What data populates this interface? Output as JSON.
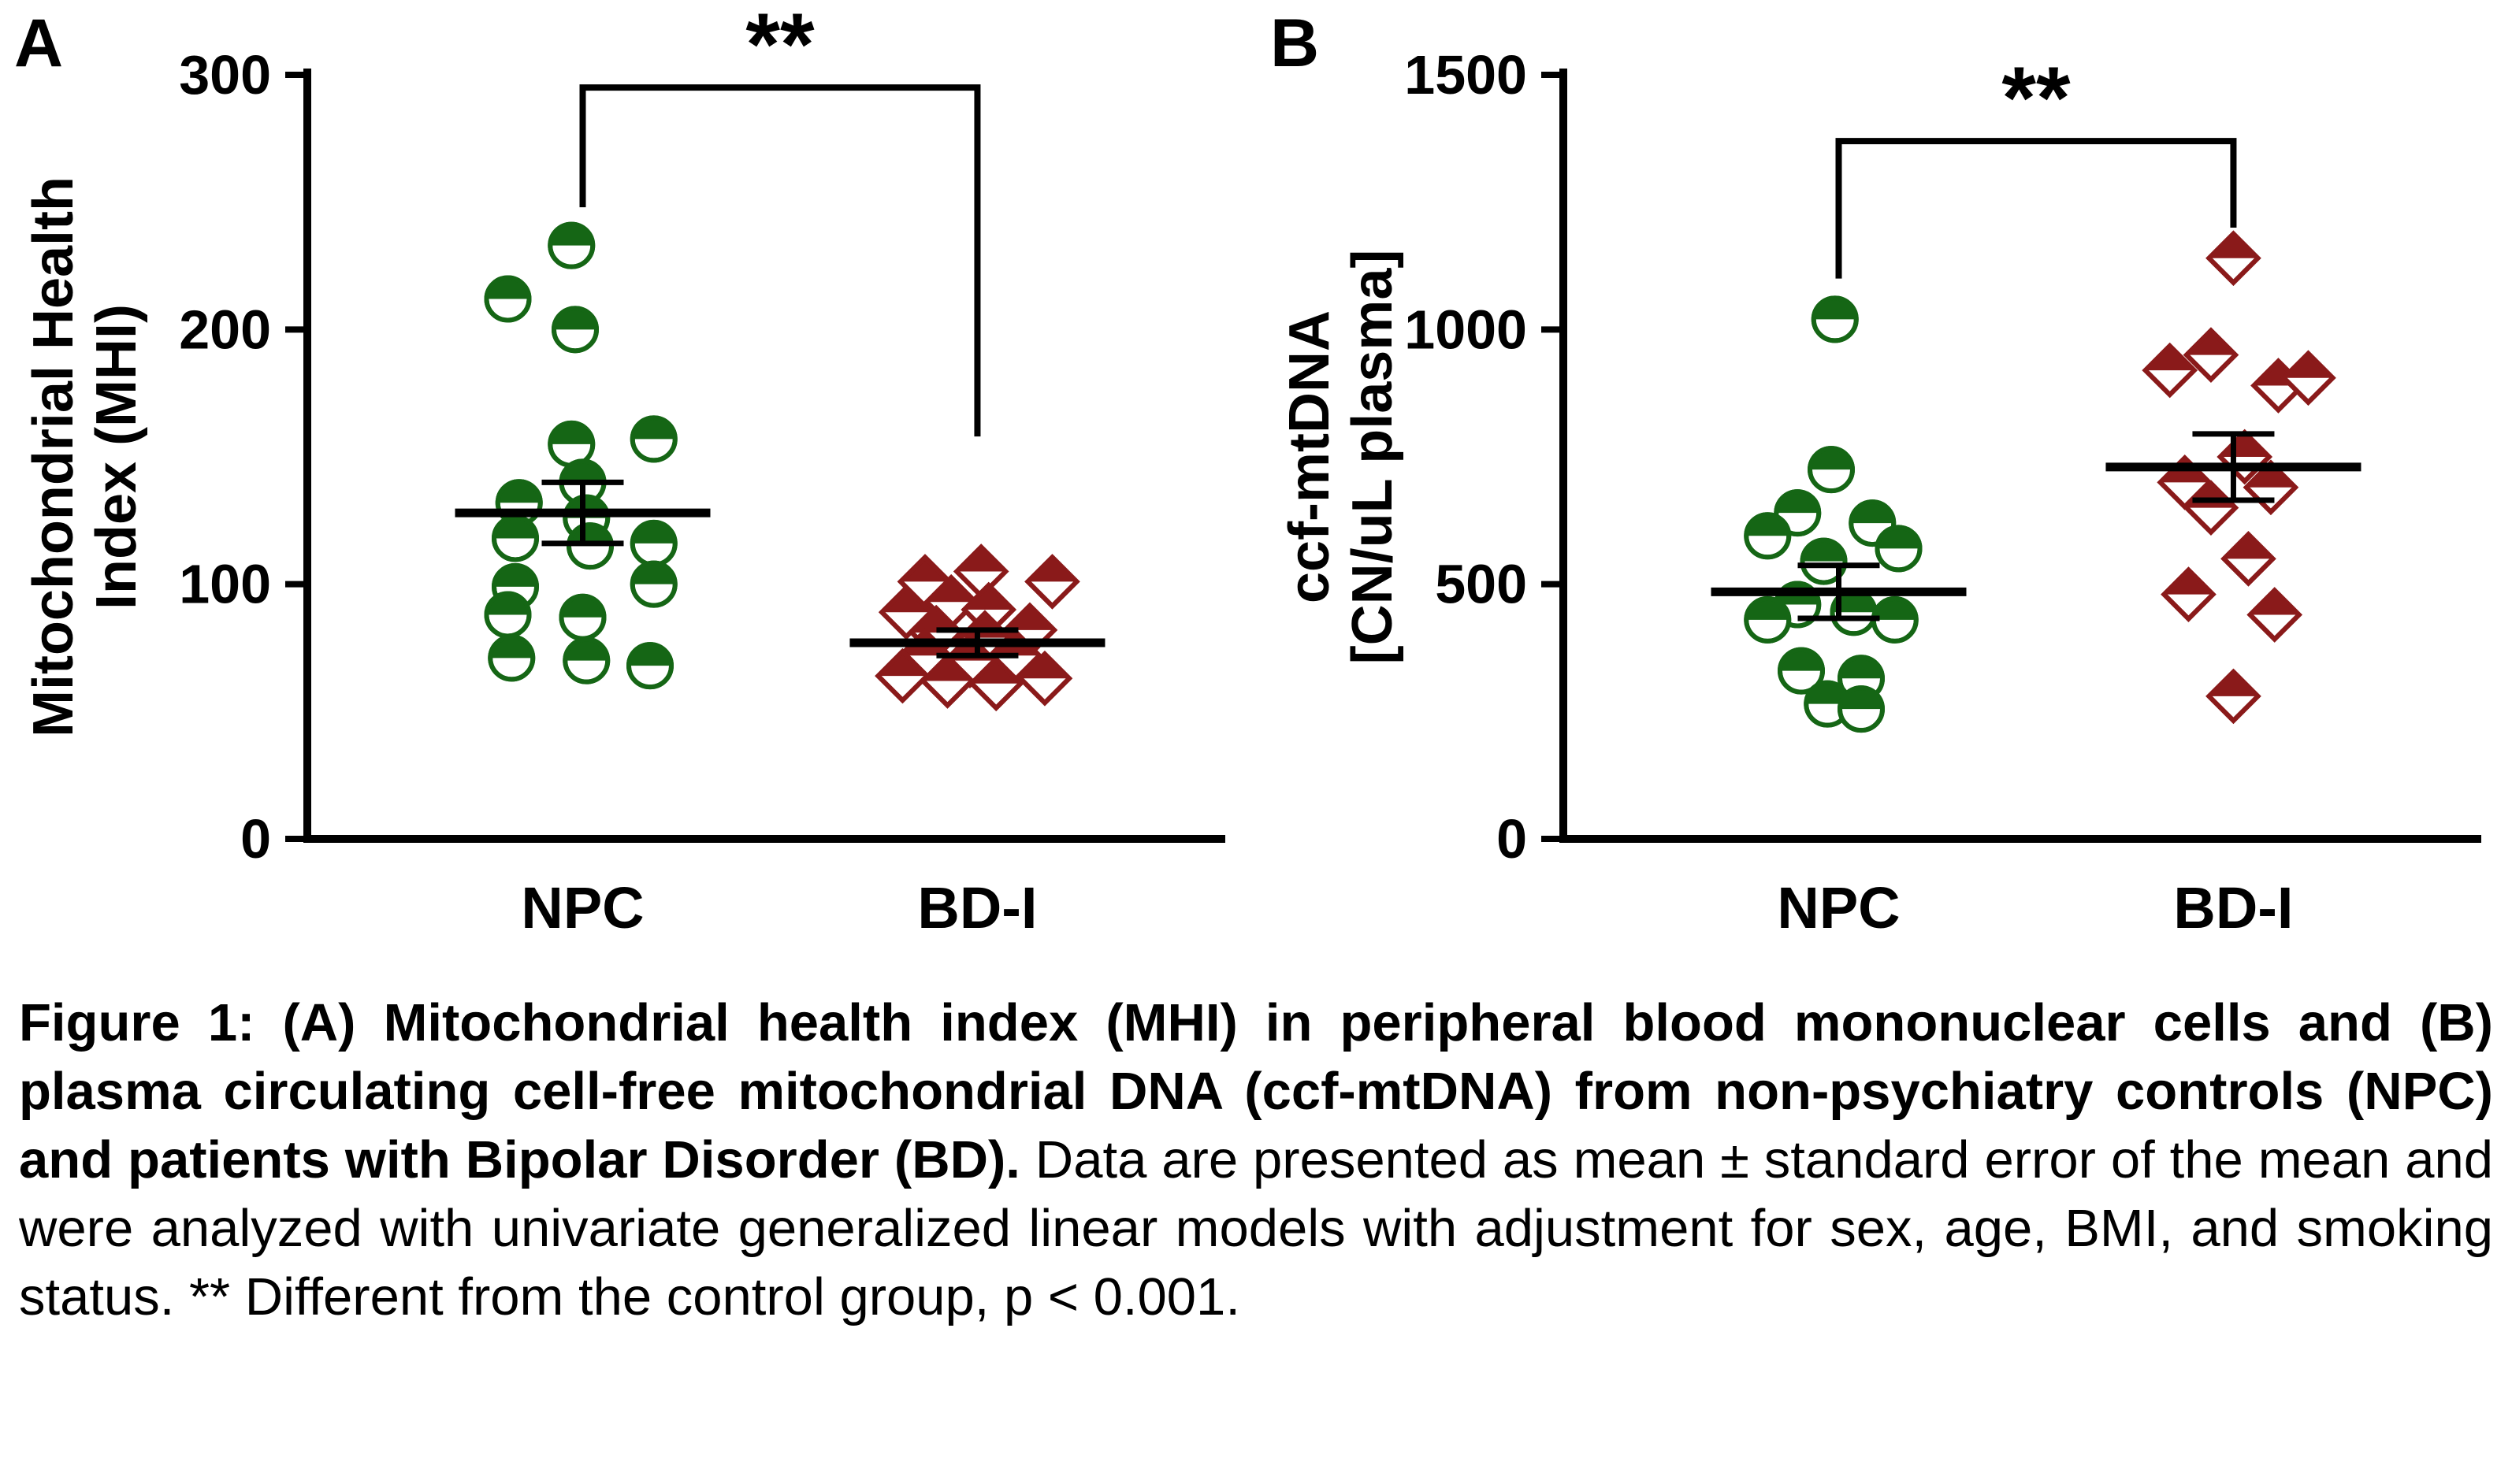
{
  "caption": {
    "bold": "Figure 1: (A) Mitochondrial health index (MHI) in peripheral blood mononuclear cells and (B) plasma circulating cell-free mitochondrial DNA (ccf-mtDNA) from non-psychiatry controls (NPC) and patients with Bipolar Disorder (BD).",
    "regular": " Data are presented as mean ± standard error of the mean and were analyzed with univariate generalized linear models with adjustment for sex, age, BMI, and smoking status. ** Different from the control group, p < 0.001."
  },
  "chart_data": [
    {
      "type": "scatter",
      "panel_label": "A",
      "ylabel": "Mitochondrial Health Index (MHI)",
      "ylabel_lines": [
        "Mitochondrial Health",
        "Index (MHI)"
      ],
      "ylim": [
        0,
        300
      ],
      "yticks": [
        0,
        100,
        200,
        300
      ],
      "categories": [
        "NPC",
        "BD-I"
      ],
      "series": [
        {
          "name": "NPC",
          "marker": "half-circle",
          "color": "#156615",
          "mean": 128,
          "sem": 12,
          "values": [
            212,
            233,
            200,
            155,
            157,
            140,
            132,
            126,
            118,
            115,
            116,
            100,
            99,
            88,
            87,
            71,
            70,
            68
          ],
          "jitter": [
            -1.0,
            -0.15,
            -0.1,
            -0.15,
            0.95,
            0.0,
            -0.85,
            0.05,
            -0.9,
            0.1,
            0.95,
            0.95,
            -0.9,
            -1.0,
            0.0,
            -0.95,
            0.05,
            0.9
          ]
        },
        {
          "name": "BD-I",
          "marker": "half-diamond",
          "color": "#8a1a1a",
          "mean": 77,
          "sem": 5,
          "values": [
            105,
            101,
            101,
            93,
            89,
            90,
            81,
            79,
            82,
            72,
            70,
            72,
            64,
            62,
            61,
            63
          ],
          "jitter": [
            0.05,
            -0.7,
            1.0,
            -0.35,
            -0.95,
            0.15,
            -0.55,
            0.1,
            0.7,
            -0.7,
            -0.1,
            0.5,
            -1.0,
            -0.4,
            0.25,
            0.9
          ]
        }
      ],
      "significance": {
        "label": "**",
        "y_top": 295,
        "left_drop_to": 248,
        "right_drop_to": 158
      }
    },
    {
      "type": "scatter",
      "panel_label": "B",
      "ylabel": "ccf-mtDNA [CN/uL plasma]",
      "ylabel_lines": [
        "ccf-mtDNA",
        "[CN/uL plasma]"
      ],
      "ylim": [
        0,
        1500
      ],
      "yticks": [
        0,
        500,
        1000,
        1500
      ],
      "categories": [
        "NPC",
        "BD-I"
      ],
      "series": [
        {
          "name": "NPC",
          "marker": "half-circle",
          "color": "#156615",
          "mean": 485,
          "sem": 52,
          "values": [
            1020,
            725,
            640,
            620,
            595,
            570,
            545,
            460,
            445,
            430,
            430,
            330,
            315,
            265,
            255
          ],
          "jitter": [
            -0.05,
            -0.1,
            -0.55,
            0.45,
            -0.95,
            0.8,
            -0.2,
            -0.55,
            0.2,
            -0.95,
            0.75,
            -0.5,
            0.3,
            -0.15,
            0.3
          ]
        },
        {
          "name": "BD-I",
          "marker": "half-diamond",
          "color": "#8a1a1a",
          "mean": 730,
          "sem": 65,
          "values": [
            1140,
            950,
            920,
            890,
            905,
            750,
            700,
            690,
            650,
            550,
            480,
            440,
            280
          ],
          "jitter": [
            0.0,
            -0.3,
            -0.85,
            0.6,
            1.0,
            0.15,
            -0.65,
            0.5,
            -0.3,
            0.2,
            -0.6,
            0.55,
            0.0
          ]
        }
      ],
      "significance": {
        "label": "**",
        "y_top": 1370,
        "left_drop_to": 1100,
        "right_drop_to": 1200
      }
    }
  ]
}
